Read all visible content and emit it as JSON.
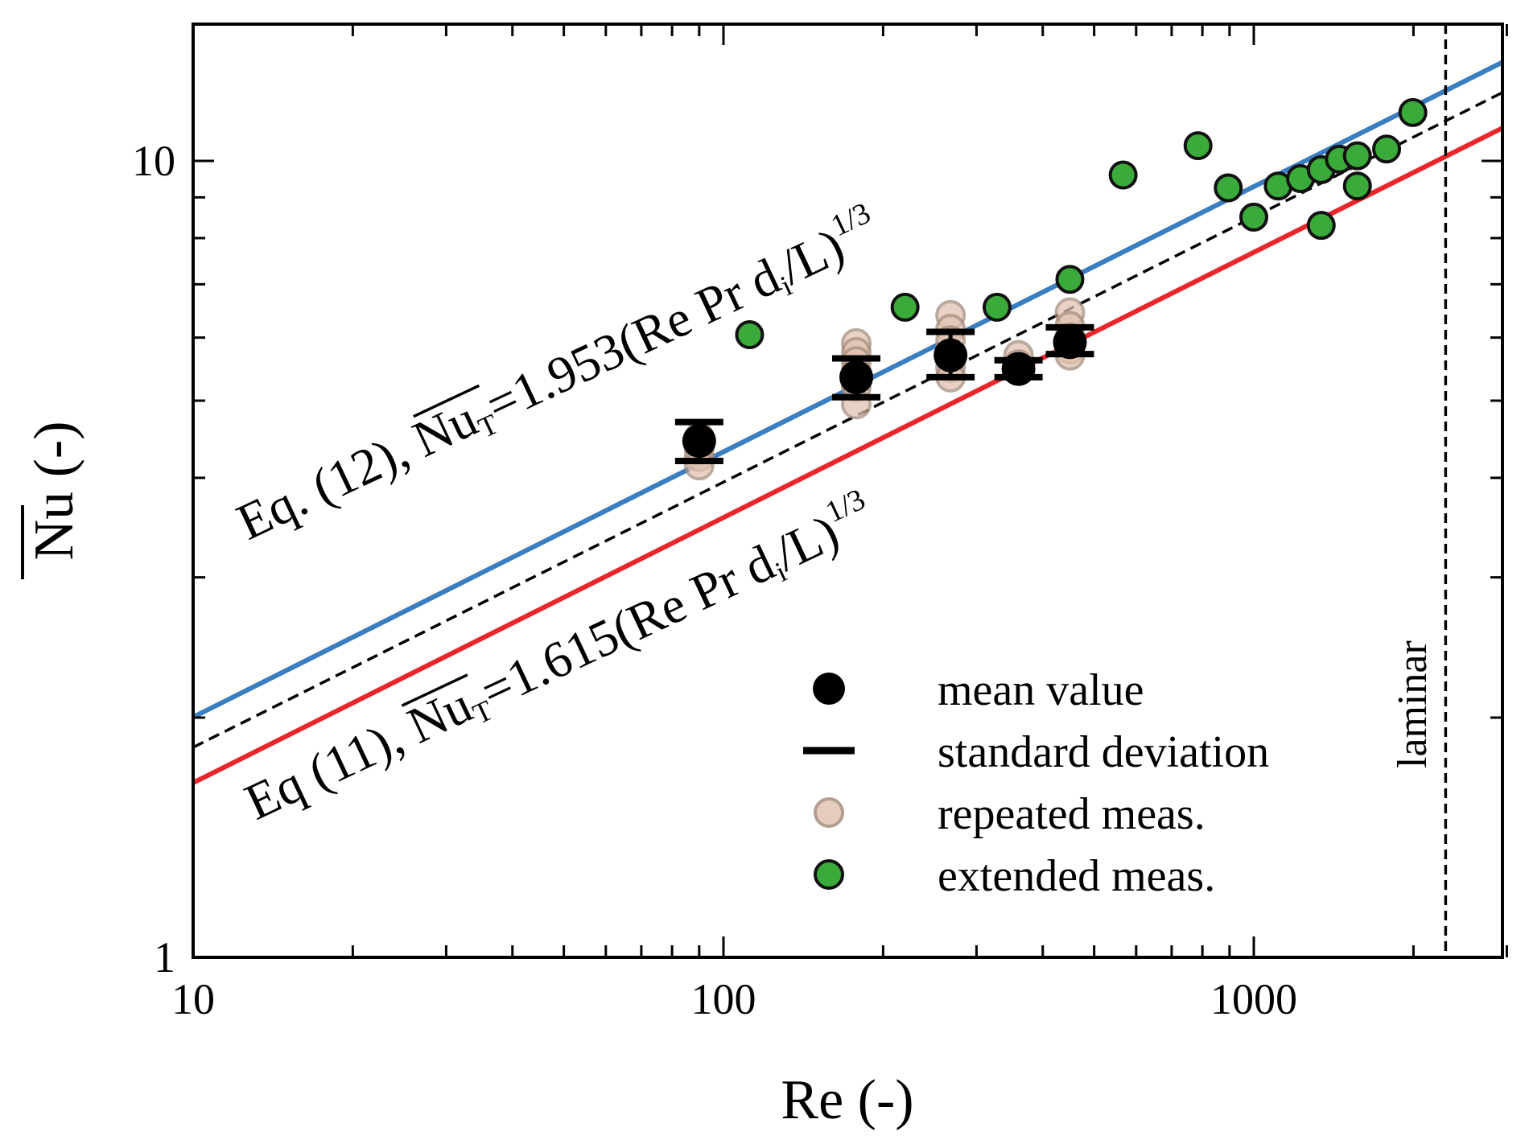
{
  "chart_data": {
    "type": "scatter",
    "xlabel": "Re (-)",
    "ylabel": "Nu (-)",
    "xscale": "log",
    "yscale": "log",
    "xlim": [
      10,
      3300
    ],
    "ylim": [
      1,
      15
    ],
    "x_ticks": [
      {
        "value": 10,
        "label": "10"
      },
      {
        "value": 100,
        "label": "100"
      },
      {
        "value": 1000,
        "label": "1000"
      }
    ],
    "y_ticks": [
      {
        "value": 1,
        "label": "1"
      },
      {
        "value": 10,
        "label": "10"
      }
    ],
    "grid": false,
    "legend_position": "bottom-right",
    "colors": {
      "eq12_line": "#3a7dc1",
      "eq11_line": "#e8262b",
      "fit_line": "#000000",
      "extended_fill": "#3aaa3a",
      "repeated_fill": "#e2c4b2",
      "repeated_stroke": "#a88e7e",
      "mean_fill": "#000000"
    },
    "lines": [
      {
        "id": "eq12",
        "kind": "power_law",
        "coefficient": 0.9305,
        "exponent": 0.333,
        "color": "#3a7dc1",
        "style": "solid"
      },
      {
        "id": "fit",
        "kind": "power_law",
        "coefficient": 0.8525,
        "exponent": 0.333,
        "color": "#000000",
        "style": "dashed"
      },
      {
        "id": "eq11",
        "kind": "power_law",
        "coefficient": 0.7695,
        "exponent": 0.333,
        "color": "#e8262b",
        "style": "solid"
      }
    ],
    "laminar_limit": {
      "x": 2300,
      "label": "laminar"
    },
    "annotations": {
      "eq12": {
        "prefix": "Eq. (12), ",
        "nu": "Nu",
        "sub": "T",
        "suffix": "=1.953(Re Pr d",
        "sub2": "i",
        "suffix2": "/L)",
        "sup": "1/3"
      },
      "eq11": {
        "prefix": "Eq (11), ",
        "nu": "Nu",
        "sub": "T",
        "suffix": "=1.615(Re Pr d",
        "sub2": "i",
        "suffix2": "/L)",
        "sup": "1/3"
      }
    },
    "series": [
      {
        "name": "repeated meas.",
        "points": [
          [
            90,
            4.5
          ],
          [
            90,
            4.4
          ],
          [
            90,
            4.35
          ],
          [
            90,
            4.25
          ],
          [
            90,
            4.15
          ],
          [
            178,
            5.9
          ],
          [
            178,
            5.75
          ],
          [
            178,
            5.6
          ],
          [
            178,
            5.45
          ],
          [
            178,
            5.2
          ],
          [
            178,
            4.95
          ],
          [
            268,
            6.4
          ],
          [
            268,
            6.15
          ],
          [
            268,
            5.95
          ],
          [
            268,
            5.7
          ],
          [
            268,
            5.5
          ],
          [
            268,
            5.35
          ],
          [
            360,
            5.7
          ],
          [
            360,
            5.55
          ],
          [
            360,
            5.45
          ],
          [
            450,
            6.45
          ],
          [
            450,
            6.2
          ],
          [
            450,
            6.0
          ],
          [
            450,
            5.8
          ],
          [
            450,
            5.7
          ]
        ]
      },
      {
        "name": "standard deviation",
        "bars": [
          {
            "x": 90,
            "low": 4.2,
            "high": 4.7
          },
          {
            "x": 178,
            "low": 5.05,
            "high": 5.65
          },
          {
            "x": 268,
            "low": 5.35,
            "high": 6.1
          },
          {
            "x": 360,
            "low": 5.35,
            "high": 5.62
          },
          {
            "x": 450,
            "low": 5.72,
            "high": 6.18
          }
        ]
      },
      {
        "name": "mean value",
        "points": [
          [
            90,
            4.45
          ],
          [
            178,
            5.35
          ],
          [
            268,
            5.7
          ],
          [
            360,
            5.48
          ],
          [
            450,
            5.92
          ]
        ]
      },
      {
        "name": "extended meas.",
        "points": [
          [
            112,
            6.05
          ],
          [
            220,
            6.55
          ],
          [
            328,
            6.55
          ],
          [
            450,
            7.1
          ],
          [
            567,
            9.6
          ],
          [
            785,
            10.45
          ],
          [
            895,
            9.25
          ],
          [
            1000,
            8.5
          ],
          [
            1112,
            9.3
          ],
          [
            1225,
            9.5
          ],
          [
            1340,
            9.75
          ],
          [
            1340,
            8.3
          ],
          [
            1450,
            10.05
          ],
          [
            1568,
            10.15
          ],
          [
            1568,
            9.3
          ],
          [
            1780,
            10.35
          ],
          [
            1995,
            11.5
          ]
        ]
      }
    ],
    "legend": [
      {
        "marker": "mean",
        "label": "mean value"
      },
      {
        "marker": "std",
        "label": "standard deviation"
      },
      {
        "marker": "repeated",
        "label": "repeated meas."
      },
      {
        "marker": "extended",
        "label": "extended meas."
      }
    ]
  }
}
